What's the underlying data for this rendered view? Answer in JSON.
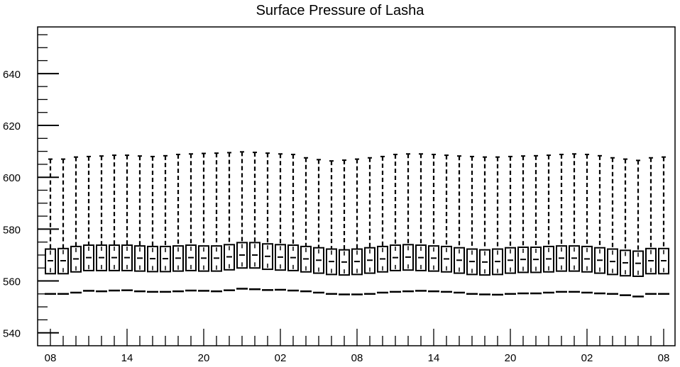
{
  "chart_data": {
    "type": "boxplot",
    "title": "Surface Pressure of Lasha",
    "xlabel": "",
    "ylabel": "",
    "ylim": [
      535,
      658
    ],
    "yticks": [
      540,
      560,
      580,
      600,
      620,
      640
    ],
    "x_tick_labels": [
      {
        "index": 0,
        "label": "08"
      },
      {
        "index": 6,
        "label": "14"
      },
      {
        "index": 12,
        "label": "20"
      },
      {
        "index": 18,
        "label": "02"
      },
      {
        "index": 24,
        "label": "08"
      },
      {
        "index": 30,
        "label": "14"
      },
      {
        "index": 36,
        "label": "20"
      },
      {
        "index": 42,
        "label": "02"
      },
      {
        "index": 48,
        "label": "08"
      }
    ],
    "n_periods": 49,
    "series": [
      {
        "min": [
          555.0,
          555.0,
          555.5,
          556.2,
          556.0,
          556.3,
          556.4,
          556.0,
          555.8,
          555.8,
          556.0,
          556.3,
          556.2,
          556.0,
          556.4,
          557.0,
          556.8,
          556.5,
          556.6,
          556.3,
          556.0,
          555.5,
          555.0,
          554.8,
          554.8,
          555.0,
          555.5,
          555.8,
          556.0,
          556.2,
          556.0,
          555.8,
          555.5,
          555.0,
          554.8,
          554.7,
          555.0,
          555.2,
          555.2,
          555.5,
          555.8,
          555.8,
          555.5,
          555.2,
          555.0,
          554.5,
          554.0,
          555.0,
          555.0
        ],
        "q1": [
          562.8,
          562.8,
          563.5,
          564.0,
          564.0,
          564.0,
          564.0,
          563.8,
          563.6,
          563.6,
          563.8,
          564.0,
          563.8,
          563.8,
          564.3,
          565.0,
          565.0,
          564.5,
          564.2,
          564.0,
          563.5,
          563.0,
          562.5,
          562.3,
          562.5,
          563.0,
          563.5,
          564.0,
          564.2,
          564.0,
          563.8,
          563.5,
          563.0,
          562.5,
          562.3,
          562.5,
          563.0,
          563.3,
          563.3,
          563.5,
          563.8,
          563.8,
          563.5,
          563.0,
          562.5,
          562.0,
          561.8,
          562.8,
          562.8
        ],
        "median": [
          567.8,
          567.8,
          568.5,
          569.0,
          569.0,
          569.0,
          569.0,
          568.8,
          568.6,
          568.6,
          568.8,
          569.0,
          568.8,
          568.8,
          569.3,
          570.0,
          570.0,
          569.5,
          569.2,
          569.0,
          568.5,
          568.0,
          567.5,
          567.3,
          567.5,
          568.0,
          568.5,
          569.0,
          569.2,
          569.0,
          568.8,
          568.5,
          568.0,
          567.5,
          567.3,
          567.5,
          568.0,
          568.3,
          568.3,
          568.5,
          568.8,
          568.8,
          568.5,
          568.0,
          567.5,
          567.0,
          566.8,
          567.8,
          567.8
        ],
        "q3": [
          572.3,
          572.5,
          573.3,
          573.8,
          573.8,
          573.8,
          573.8,
          573.5,
          573.3,
          573.3,
          573.5,
          573.8,
          573.5,
          573.5,
          574.0,
          574.8,
          574.8,
          574.3,
          574.0,
          573.8,
          573.3,
          572.8,
          572.3,
          572.0,
          572.3,
          572.8,
          573.3,
          573.8,
          574.0,
          573.8,
          573.5,
          573.3,
          572.8,
          572.3,
          572.0,
          572.3,
          572.8,
          573.0,
          573.0,
          573.3,
          573.5,
          573.5,
          573.3,
          572.8,
          572.3,
          571.8,
          571.5,
          572.5,
          572.5
        ],
        "max": [
          607.0,
          607.0,
          607.8,
          608.0,
          608.2,
          608.5,
          608.5,
          608.2,
          608.0,
          608.3,
          608.8,
          609.0,
          609.2,
          609.3,
          609.5,
          609.8,
          609.6,
          609.3,
          609.0,
          608.8,
          607.5,
          606.8,
          606.3,
          606.6,
          607.0,
          607.5,
          608.0,
          608.8,
          609.0,
          609.0,
          608.8,
          608.5,
          608.2,
          608.0,
          607.8,
          607.8,
          608.0,
          608.2,
          608.3,
          608.5,
          608.8,
          609.0,
          608.8,
          608.3,
          607.5,
          607.0,
          606.5,
          607.5,
          607.8
        ]
      }
    ],
    "grid": false,
    "legend": "none"
  }
}
